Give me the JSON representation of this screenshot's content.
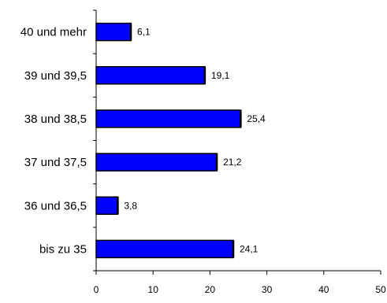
{
  "chart_data": {
    "type": "bar",
    "orientation": "horizontal",
    "categories": [
      "bis zu 35",
      "36 und 36,5",
      "37 und 37,5",
      "38 und 38,5",
      "39 und 39,5",
      "40 und mehr"
    ],
    "values": [
      24.1,
      3.8,
      21.2,
      25.4,
      19.1,
      6.1
    ],
    "value_labels": [
      "24,1",
      "3,8",
      "21,2",
      "25,4",
      "19,1",
      "6,1"
    ],
    "xlim": [
      0,
      50
    ],
    "x_ticks": [
      0,
      10,
      20,
      30,
      40,
      50
    ],
    "x_tick_labels": [
      "0",
      "10",
      "20",
      "30",
      "40",
      "50"
    ],
    "title": "",
    "xlabel": "",
    "ylabel": "",
    "grid": false,
    "legend": "none",
    "bar_color": "#0000ff",
    "bar_outline_color": "#000000"
  }
}
